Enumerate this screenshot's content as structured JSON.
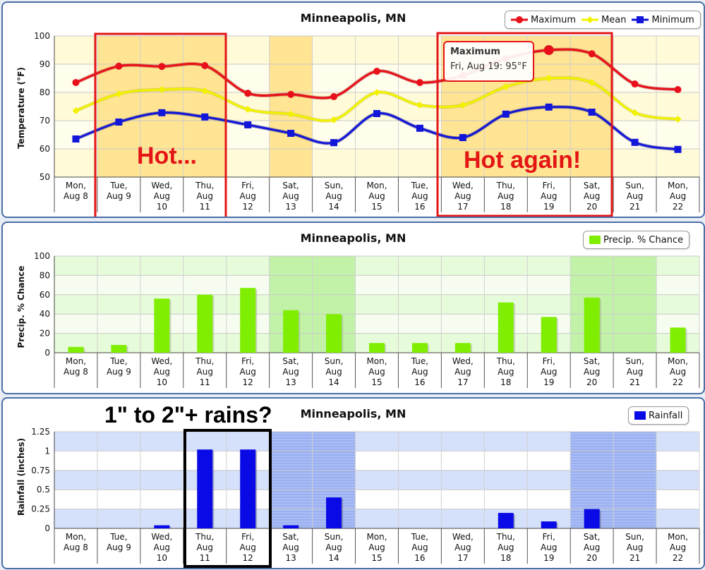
{
  "x_labels": [
    [
      "Mon,",
      "Aug 8"
    ],
    [
      "Tue,",
      "Aug 9"
    ],
    [
      "Wed,",
      "Aug",
      "10"
    ],
    [
      "Thu,",
      "Aug",
      "11"
    ],
    [
      "Fri,",
      "Aug",
      "12"
    ],
    [
      "Sat,",
      "Aug",
      "13"
    ],
    [
      "Sun,",
      "Aug",
      "14"
    ],
    [
      "Mon,",
      "Aug",
      "15"
    ],
    [
      "Tue,",
      "Aug",
      "16"
    ],
    [
      "Wed,",
      "Aug",
      "17"
    ],
    [
      "Thu,",
      "Aug",
      "18"
    ],
    [
      "Fri,",
      "Aug",
      "19"
    ],
    [
      "Sat,",
      "Aug",
      "20"
    ],
    [
      "Sun,",
      "Aug",
      "21"
    ],
    [
      "Mon,",
      "Aug",
      "22"
    ]
  ],
  "annotations": {
    "hot": "Hot...",
    "hot_again": "Hot again!",
    "rains": "1\" to 2\"+ rains?"
  },
  "tooltip": {
    "title": "Maximum",
    "text": "Fri, Aug 19: 95°F"
  },
  "colors": {
    "maximum": "#e8101a",
    "mean": "#f2f200",
    "minimum": "#1216d8",
    "precip": "#80ee00",
    "rain": "#0a0ae6",
    "annotation_red": "#e31515",
    "annotation_black": "#000000"
  },
  "chart_data": [
    {
      "type": "line",
      "title": "Minneapolis, MN",
      "ylabel": "Temperature (°F)",
      "ylim": [
        50,
        100
      ],
      "yticks": [
        "50",
        "60",
        "70",
        "80",
        "90",
        "100"
      ],
      "grid": true,
      "legend_position": "top-right",
      "highlight_days": [
        1,
        2,
        3,
        5,
        9,
        10,
        11,
        12
      ],
      "categories": [
        "Mon, Aug 8",
        "Tue, Aug 9",
        "Wed, Aug 10",
        "Thu, Aug 11",
        "Fri, Aug 12",
        "Sat, Aug 13",
        "Sun, Aug 14",
        "Mon, Aug 15",
        "Tue, Aug 16",
        "Wed, Aug 17",
        "Thu, Aug 18",
        "Fri, Aug 19",
        "Sat, Aug 20",
        "Sun, Aug 21",
        "Mon, Aug 22"
      ],
      "series": [
        {
          "name": "Maximum",
          "marker": "circle",
          "values": [
            83.5,
            89.3,
            89.2,
            89.5,
            79.7,
            79.3,
            78.5,
            87.5,
            83.5,
            86,
            92,
            95,
            93.7,
            83,
            81
          ]
        },
        {
          "name": "Mean",
          "marker": "diamond",
          "values": [
            73.5,
            79.5,
            81,
            80.5,
            74,
            72.3,
            70.3,
            80,
            75.5,
            75.5,
            82,
            85,
            83.5,
            72.8,
            70.5
          ]
        },
        {
          "name": "Minimum",
          "marker": "square",
          "values": [
            63.5,
            69.5,
            72.8,
            71.3,
            68.5,
            65.5,
            62.2,
            72.5,
            67.3,
            64,
            72.3,
            74.8,
            73,
            62.3,
            59.8
          ]
        }
      ]
    },
    {
      "type": "bar",
      "title": "Minneapolis, MN",
      "ylabel": "Precip. % Chance",
      "ylim": [
        0,
        100
      ],
      "yticks": [
        "0",
        "20",
        "40",
        "60",
        "80",
        "100"
      ],
      "grid": true,
      "legend_position": "top-right",
      "highlight_days": [
        5,
        6,
        12,
        13
      ],
      "categories": [
        "Mon, Aug 8",
        "Tue, Aug 9",
        "Wed, Aug 10",
        "Thu, Aug 11",
        "Fri, Aug 12",
        "Sat, Aug 13",
        "Sun, Aug 14",
        "Mon, Aug 15",
        "Tue, Aug 16",
        "Wed, Aug 17",
        "Thu, Aug 18",
        "Fri, Aug 19",
        "Sat, Aug 20",
        "Sun, Aug 21",
        "Mon, Aug 22"
      ],
      "series": [
        {
          "name": "Precip. % Chance",
          "values": [
            6,
            8,
            56,
            60,
            67,
            44,
            40,
            10,
            10,
            10,
            52,
            37,
            57,
            0,
            26
          ]
        }
      ]
    },
    {
      "type": "bar",
      "title": "Minneapolis, MN",
      "ylabel": "Rainfall (inches)",
      "ylim": [
        0,
        1.25
      ],
      "yticks": [
        "0",
        "0.25",
        "0.5",
        "0.75",
        "1",
        "1.25"
      ],
      "grid": true,
      "legend_position": "top-right",
      "highlight_days": [
        5,
        6,
        12,
        13
      ],
      "categories": [
        "Mon, Aug 8",
        "Tue, Aug 9",
        "Wed, Aug 10",
        "Thu, Aug 11",
        "Fri, Aug 12",
        "Sat, Aug 13",
        "Sun, Aug 14",
        "Mon, Aug 15",
        "Tue, Aug 16",
        "Wed, Aug 17",
        "Thu, Aug 18",
        "Fri, Aug 19",
        "Sat, Aug 20",
        "Sun, Aug 21",
        "Mon, Aug 22"
      ],
      "series": [
        {
          "name": "Rainfall",
          "values": [
            0,
            0,
            0.04,
            1.02,
            1.02,
            0.04,
            0.4,
            0,
            0,
            0,
            0.2,
            0.09,
            0.25,
            0,
            0
          ]
        }
      ]
    }
  ]
}
